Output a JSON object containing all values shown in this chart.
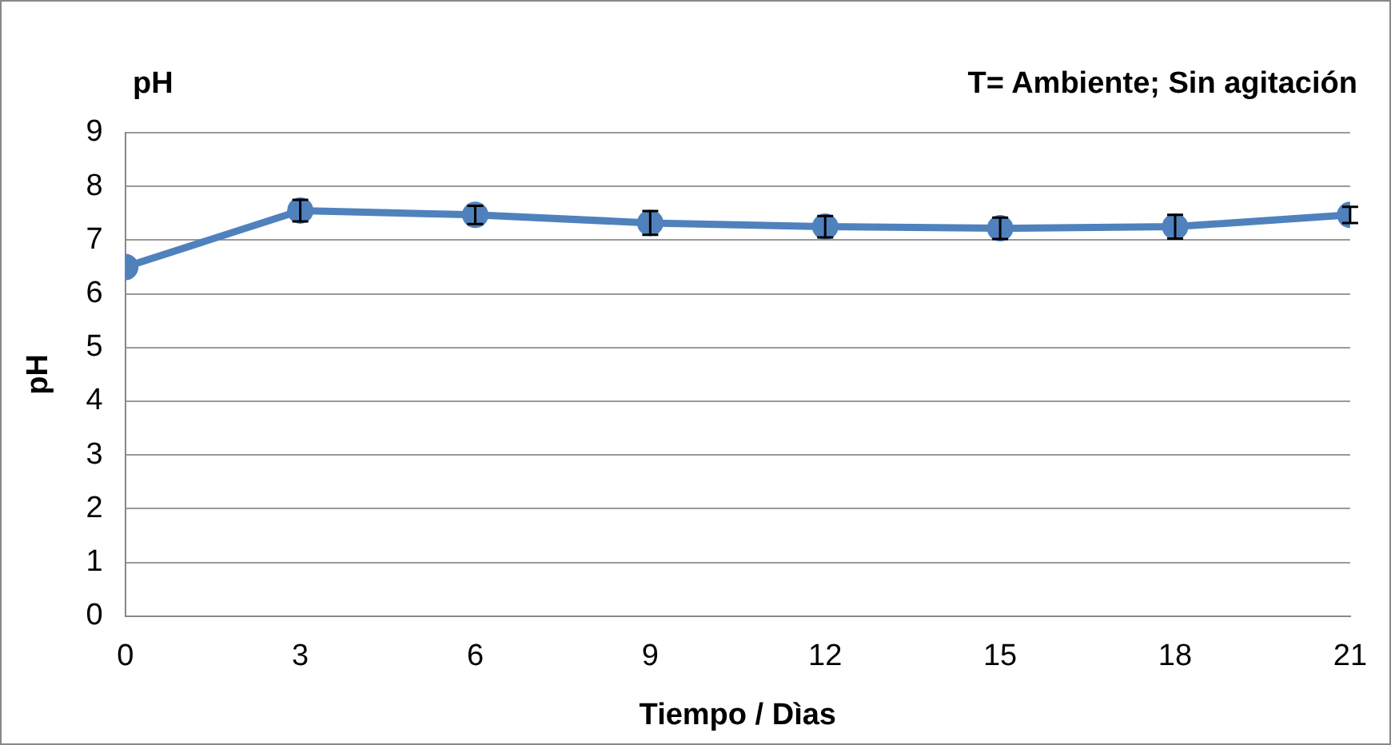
{
  "chart_data": {
    "type": "line",
    "title": "pH",
    "annotations": [
      "T= Ambiente; Sin agitación"
    ],
    "xlabel": "Tiempo / Dìas",
    "ylabel": "pH",
    "x": [
      0,
      3,
      6,
      9,
      12,
      15,
      18,
      21
    ],
    "series": [
      {
        "color": "#4f81bd",
        "values": [
          6.5,
          7.55,
          7.47,
          7.32,
          7.25,
          7.22,
          7.25,
          7.47
        ],
        "errors": [
          null,
          0.2,
          0.17,
          0.22,
          0.2,
          0.2,
          0.22,
          0.15
        ]
      }
    ],
    "xlim": [
      0,
      21
    ],
    "xticks": [
      0,
      3,
      6,
      9,
      12,
      15,
      18,
      21
    ],
    "ylim": [
      0,
      9
    ],
    "yticks": [
      0,
      1,
      2,
      3,
      4,
      5,
      6,
      7,
      8,
      9
    ],
    "grid": "y",
    "legend": false,
    "marker": "circle",
    "line_style": "solid"
  }
}
